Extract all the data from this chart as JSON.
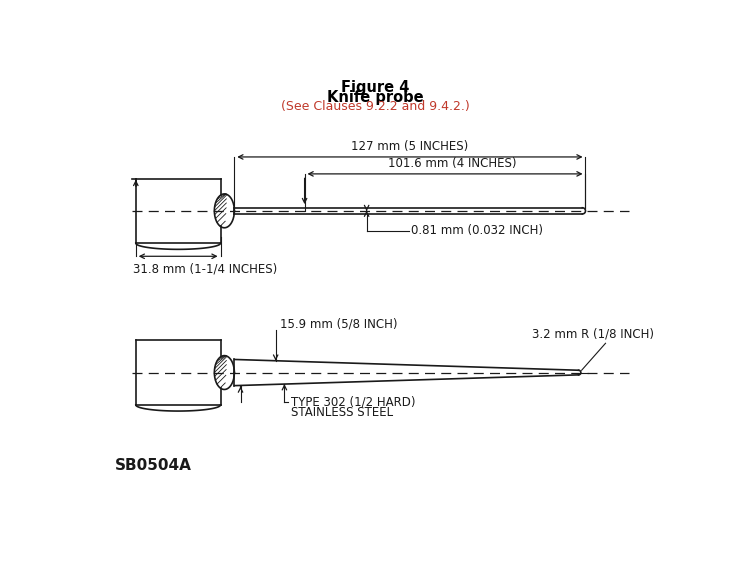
{
  "title_line1": "Figure 4",
  "title_line2": "Knife probe",
  "subtitle": "(See Clauses 9.2.2 and 9.4.2.)",
  "label_127": "127 mm (5 INCHES)",
  "label_101": "101.6 mm (4 INCHES)",
  "label_081": "0.81 mm (0.032 INCH)",
  "label_318": "31.8 mm (1-1/4 INCHES)",
  "label_159": "15.9 mm (5/8 INCH)",
  "label_32": "3.2 mm R (1/8 INCH)",
  "label_type": "TYPE 302 (1/2 HARD)",
  "label_steel": "STAINLESS STEEL",
  "label_sb": "SB0504A",
  "bg_color": "#ffffff",
  "line_color": "#1a1a1a",
  "title_color": "#000000",
  "subtitle_color": "#c0392b"
}
